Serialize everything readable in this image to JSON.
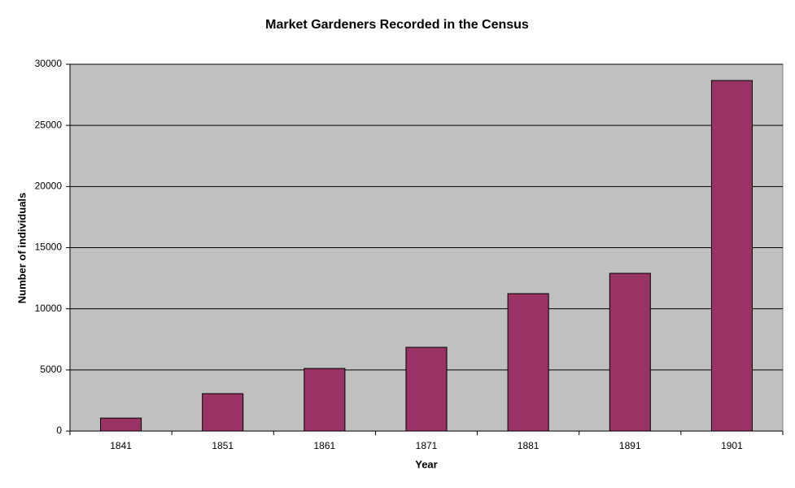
{
  "chart_data": {
    "type": "bar",
    "title": "Market Gardeners Recorded in the Census",
    "x_label": "Year",
    "y_label": "Number of individuals",
    "categories": [
      "1841",
      "1851",
      "1861",
      "1871",
      "1881",
      "1891",
      "1901"
    ],
    "values": [
      1060,
      3060,
      5120,
      6850,
      11240,
      12900,
      28670
    ],
    "color": "#993366",
    "plot_background": "#c0c0c0",
    "ylim": [
      0,
      30000
    ],
    "yticks": [
      0,
      5000,
      10000,
      15000,
      20000,
      25000,
      30000
    ],
    "grid": true
  }
}
